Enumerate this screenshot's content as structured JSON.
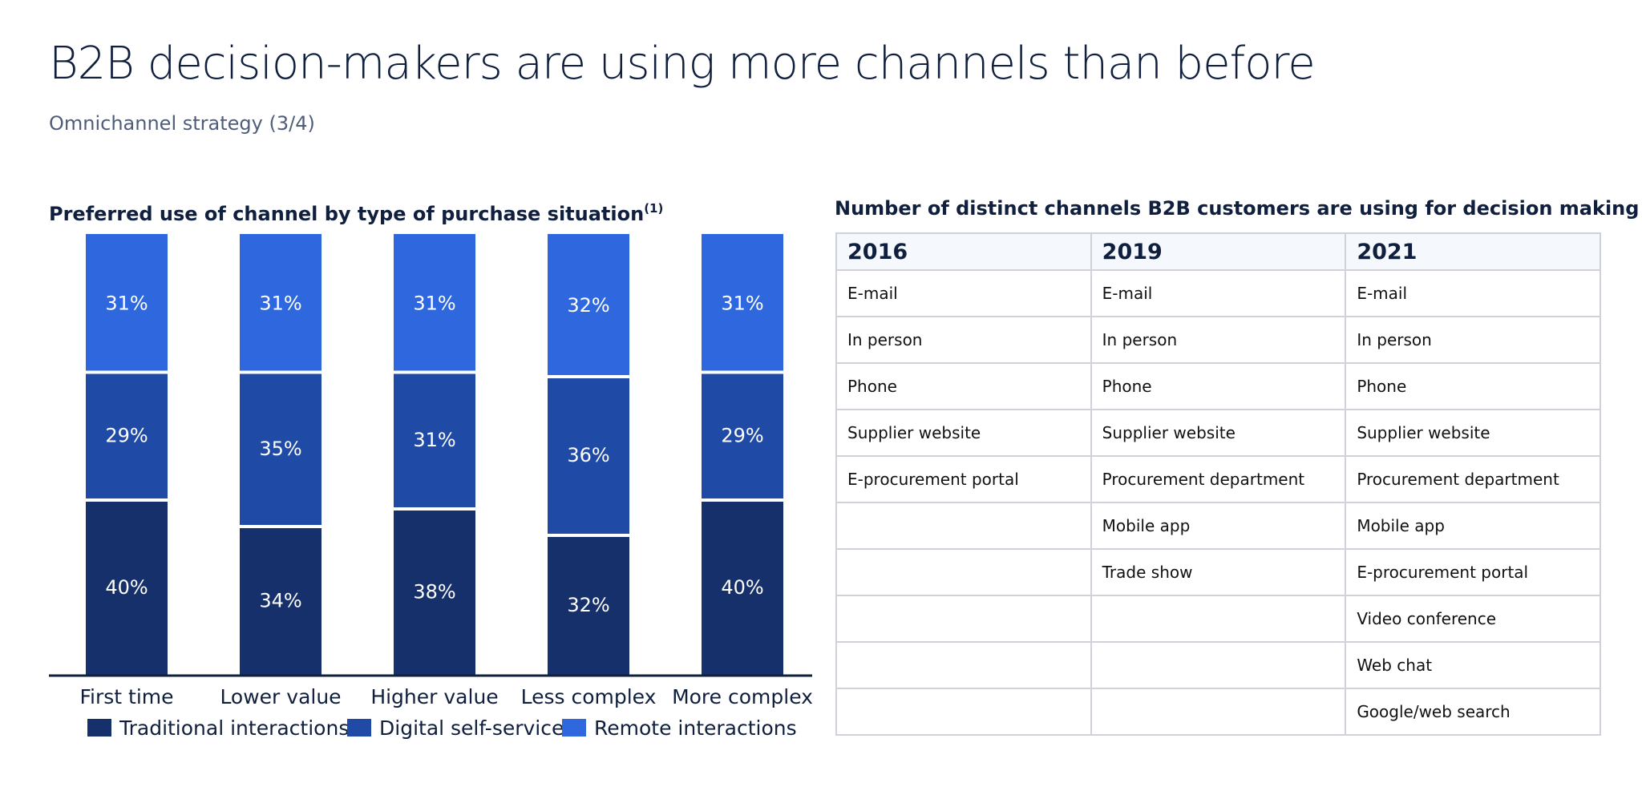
{
  "title": "B2B decision-makers are using more channels than before",
  "subtitle": "Omnichannel strategy (3/4)",
  "colors": {
    "traditional": "#15306b",
    "digital": "#1f4ba6",
    "remote": "#2e67de"
  },
  "chart_data": {
    "type": "bar",
    "stacked": true,
    "title": "Preferred use of channel by type of purchase situation",
    "title_footnote": "(1)",
    "categories": [
      "First time",
      "Lower value",
      "Higher value",
      "Less complex",
      "More complex"
    ],
    "series": [
      {
        "name": "Traditional interactions",
        "values": [
          40,
          34,
          38,
          32,
          40
        ]
      },
      {
        "name": "Digital self-service",
        "values": [
          29,
          35,
          31,
          36,
          29
        ]
      },
      {
        "name": "Remote interactions",
        "values": [
          31,
          31,
          31,
          32,
          31
        ]
      }
    ],
    "value_suffix": "%",
    "ylim": [
      0,
      100
    ],
    "grid": false,
    "legend_position": "bottom"
  },
  "table": {
    "title": "Number of distinct channels B2B customers are using for decision making",
    "columns": [
      "2016",
      "2019",
      "2021"
    ],
    "rows": [
      [
        "E-mail",
        "E-mail",
        "E-mail"
      ],
      [
        "In person",
        "In person",
        "In person"
      ],
      [
        "Phone",
        "Phone",
        "Phone"
      ],
      [
        "Supplier website",
        "Supplier website",
        "Supplier website"
      ],
      [
        "E-procurement portal",
        "Procurement department",
        "Procurement department"
      ],
      [
        "",
        "Mobile app",
        "Mobile app"
      ],
      [
        "",
        "Trade show",
        "E-procurement portal"
      ],
      [
        "",
        "",
        "Video conference"
      ],
      [
        "",
        "",
        "Web chat"
      ],
      [
        "",
        "",
        "Google/web search"
      ]
    ]
  }
}
